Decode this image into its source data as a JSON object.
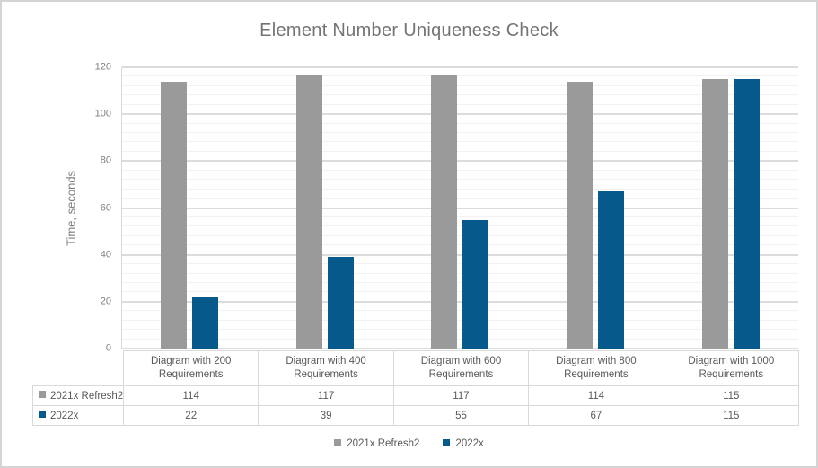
{
  "chart_data": {
    "type": "bar",
    "title": "Element Number Uniqueness Check",
    "ylabel": "Time, seconds",
    "xlabel": "",
    "ylim": [
      0,
      120
    ],
    "y_ticks": [
      0,
      20,
      40,
      60,
      80,
      100,
      120
    ],
    "y_minor_grid_step": 4,
    "grid": true,
    "legend_position": "bottom",
    "data_table_shown": true,
    "categories": [
      "Diagram with 200 Requirements",
      "Diagram with 400 Requirements",
      "Diagram with 600 Requirements",
      "Diagram with 800 Requirements",
      "Diagram with 1000 Requirements"
    ],
    "series": [
      {
        "name": "2021x Refresh2",
        "color": "#9a9a9a",
        "values": [
          114,
          117,
          117,
          114,
          115
        ]
      },
      {
        "name": "2022x",
        "color": "#055a8b",
        "values": [
          22,
          39,
          55,
          67,
          115
        ]
      }
    ]
  },
  "colors": {
    "frame_border": "#d4d4d4",
    "background": "#ffffff",
    "title_text": "#747474",
    "axis_text": "#7f7f7f",
    "table_text": "#595959",
    "major_gridline": "#dcdcdc",
    "minor_gridline": "#f2f2f2",
    "table_border": "#d9d9d9"
  }
}
